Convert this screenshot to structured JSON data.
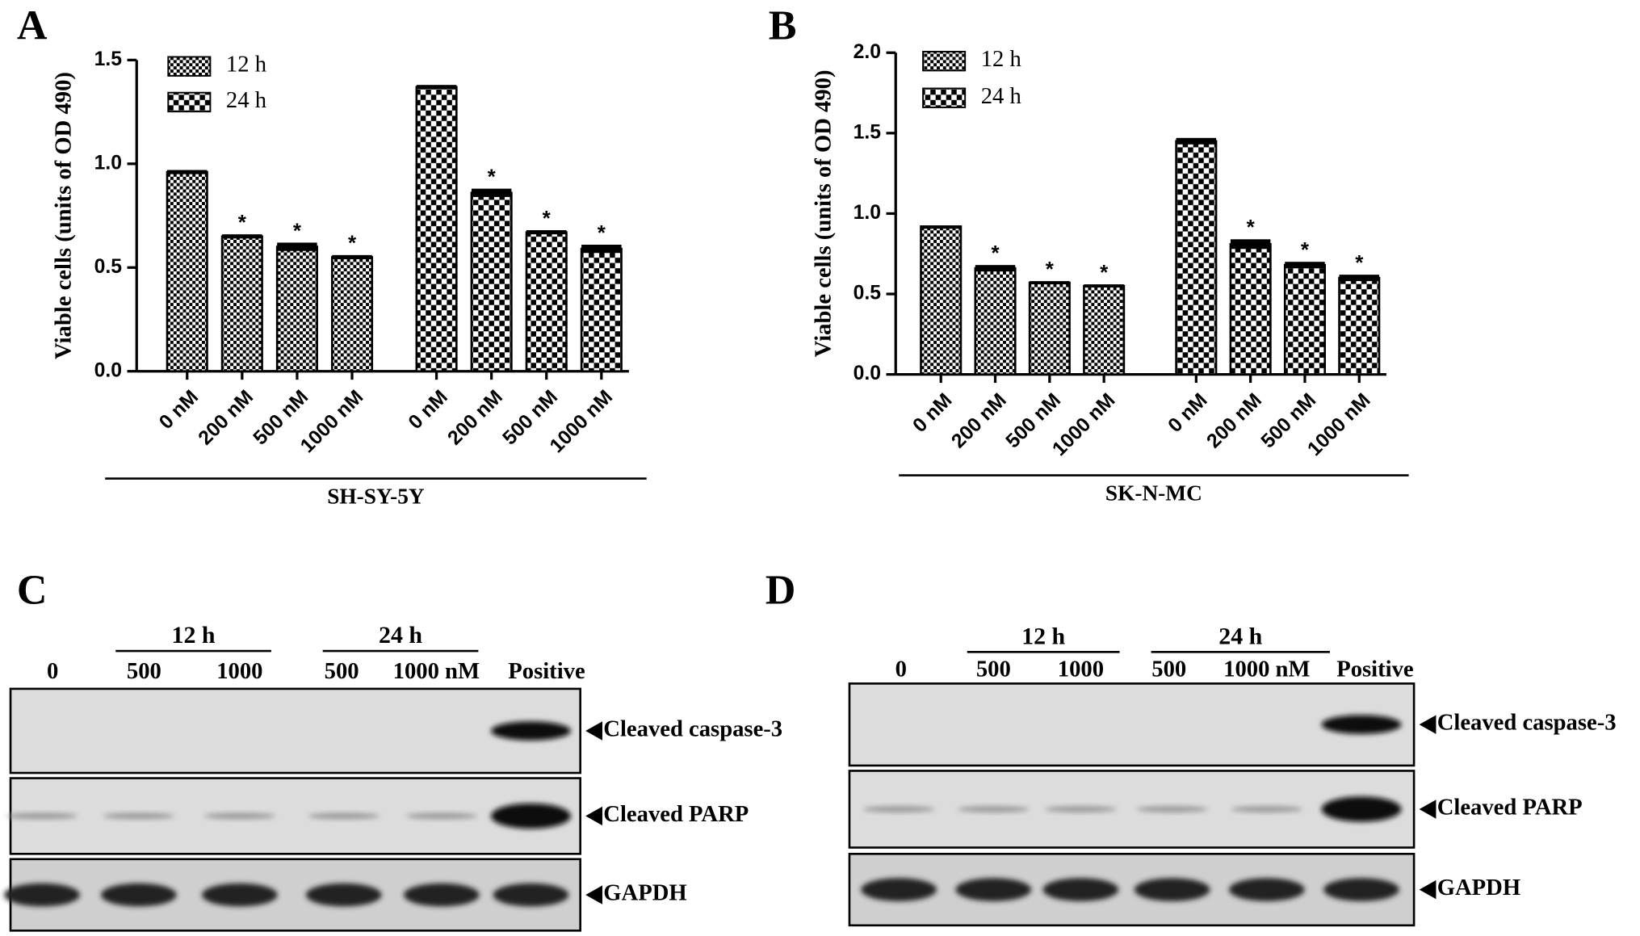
{
  "chart_data": [
    {
      "type": "bar",
      "panel": "A",
      "y_label": "Viable cells (units of OD 490)",
      "group_label": "SH-SY-5Y",
      "categories": [
        "0 nM",
        "200 nM",
        "500 nM",
        "1000 nM",
        "0 nM",
        "200 nM",
        "500 nM",
        "1000 nM"
      ],
      "series": [
        {
          "name": "12 h",
          "color": "#000000",
          "pattern": "fine",
          "values": [
            0.96,
            0.65,
            0.6,
            0.55,
            null,
            null,
            null,
            null
          ],
          "errors": [
            0.01,
            0.01,
            0.02,
            0.01,
            null,
            null,
            null,
            null
          ],
          "labels": [
            null,
            "*",
            "*",
            "*",
            null,
            null,
            null,
            null
          ]
        },
        {
          "name": "24 h",
          "color": "#000000",
          "pattern": "coarse",
          "values": [
            null,
            null,
            null,
            null,
            1.37,
            0.86,
            0.67,
            0.59
          ],
          "errors": [
            null,
            null,
            null,
            null,
            0.01,
            0.02,
            0.01,
            0.02
          ],
          "labels": [
            null,
            null,
            null,
            null,
            null,
            "*",
            "*",
            "*"
          ]
        }
      ],
      "ylim": [
        0,
        1.5
      ],
      "yticks": [
        {
          "value": 0,
          "label": "0.0"
        },
        0.5,
        {
          "value": 1,
          "label": "1.0"
        },
        1.5
      ],
      "legend": "top-left"
    },
    {
      "type": "bar",
      "panel": "B",
      "y_label": "Viable cells (units of OD 490)",
      "group_label": "SK-N-MC",
      "categories": [
        "0 nM",
        "200 nM",
        "500 nM",
        "1000 nM",
        "0 nM",
        "200 nM",
        "500 nM",
        "1000 nM"
      ],
      "series": [
        {
          "name": "12 h",
          "color": "#000000",
          "pattern": "fine",
          "values": [
            0.92,
            0.66,
            0.57,
            0.55,
            null,
            null,
            null,
            null
          ],
          "errors": [
            0.005,
            0.02,
            0.01,
            0.01,
            null,
            null,
            null,
            null
          ],
          "labels": [
            null,
            "*",
            "*",
            "*",
            null,
            null,
            null,
            null
          ]
        },
        {
          "name": "24 h",
          "color": "#000000",
          "pattern": "coarse",
          "values": [
            null,
            null,
            null,
            null,
            1.45,
            0.81,
            0.68,
            0.6
          ],
          "errors": [
            null,
            null,
            null,
            null,
            0.02,
            0.03,
            0.02,
            0.02
          ],
          "labels": [
            null,
            null,
            null,
            null,
            null,
            "*",
            "*",
            "*"
          ]
        }
      ],
      "ylim": [
        0,
        2
      ],
      "yticks": [
        {
          "value": 0,
          "label": "0.0"
        },
        0.5,
        {
          "value": 1,
          "label": "1.0"
        },
        1.5,
        {
          "value": 2,
          "label": "2.0"
        }
      ],
      "legend": "top-left"
    }
  ],
  "blots": [
    {
      "panel": "C",
      "time_labels": [
        "12 h",
        "24 h"
      ],
      "lanes": [
        "0",
        "500",
        "1000",
        "500",
        "1000 nM",
        "Positive"
      ],
      "proteins": [
        "Cleaved caspase-3",
        "Cleaved PARP",
        "GAPDH"
      ]
    },
    {
      "panel": "D",
      "time_labels": [
        "12 h",
        "24 h"
      ],
      "lanes": [
        "0",
        "500",
        "1000",
        "500",
        "1000 nM",
        "Positive"
      ],
      "proteins": [
        "Cleaved caspase-3",
        "Cleaved PARP",
        "GAPDH"
      ]
    }
  ]
}
